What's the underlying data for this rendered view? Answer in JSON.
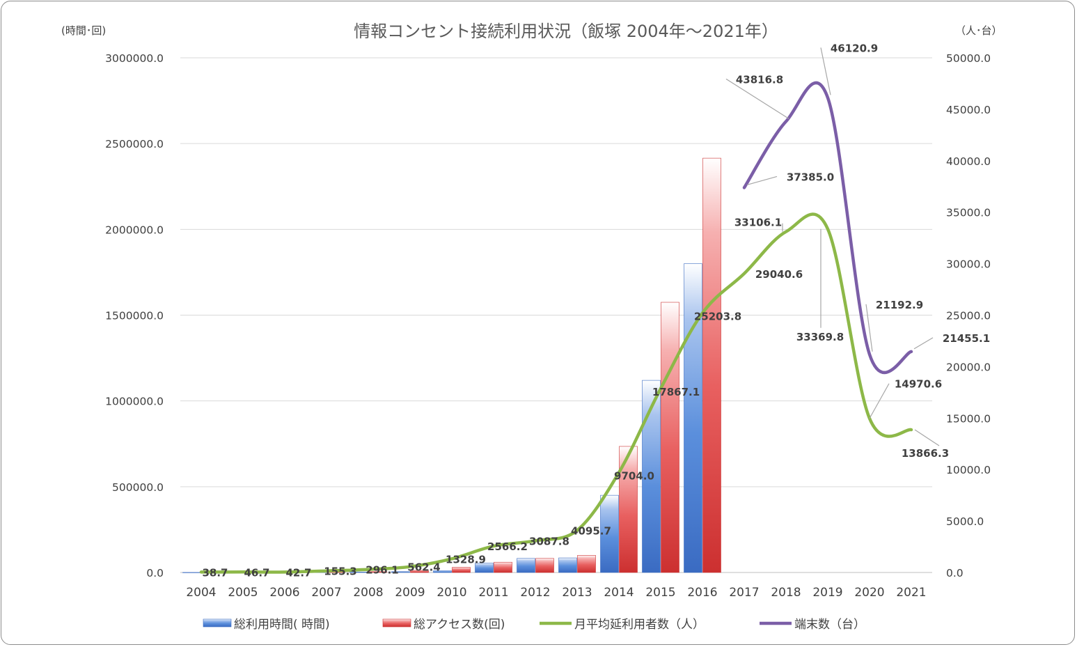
{
  "chart_data": {
    "type": "bar",
    "title": "情報コンセント接続利用状況（飯塚 2004年～2021年）",
    "left_axis_unit": "(時間･回)",
    "right_axis_unit": "（人･台）",
    "categories": [
      "2004",
      "2005",
      "2006",
      "2007",
      "2008",
      "2009",
      "2010",
      "2011",
      "2012",
      "2013",
      "2014",
      "2015",
      "2016",
      "2017",
      "2018",
      "2019",
      "2020",
      "2021"
    ],
    "left_ylim": [
      0,
      3000000
    ],
    "right_ylim": [
      0,
      50000
    ],
    "left_ticks": [
      "0.0",
      "500000.0",
      "1000000.0",
      "1500000.0",
      "2000000.0",
      "2500000.0",
      "3000000.0"
    ],
    "right_ticks": [
      "0.0",
      "5000.0",
      "10000.0",
      "15000.0",
      "20000.0",
      "25000.0",
      "30000.0",
      "35000.0",
      "40000.0",
      "45000.0",
      "50000.0"
    ],
    "grid": true,
    "legend_position": "bottom",
    "series": [
      {
        "name": "総利用時間( 時間)",
        "type": "bar",
        "axis": "left",
        "color": "#4a7fd4",
        "values": [
          500,
          600,
          700,
          1500,
          2500,
          5000,
          10000,
          55000,
          82000,
          85000,
          450000,
          1120000,
          1800000,
          null,
          null,
          null,
          null,
          null
        ]
      },
      {
        "name": "総アクセス数(回)",
        "type": "bar",
        "axis": "left",
        "color": "#e04a4a",
        "values": [
          600,
          800,
          1000,
          2500,
          5000,
          12000,
          30000,
          60000,
          82000,
          100000,
          735000,
          1575000,
          2415000,
          null,
          null,
          null,
          null,
          null
        ]
      },
      {
        "name": "月平均延利用者数（人）",
        "type": "line",
        "axis": "right",
        "color": "#8db848",
        "values": [
          38.7,
          46.7,
          42.7,
          155.3,
          296.1,
          562.4,
          1328.9,
          2566.2,
          3087.8,
          4095.7,
          9704.0,
          17867.1,
          25203.8,
          29040.6,
          33106.1,
          33369.8,
          14970.6,
          13866.3
        ]
      },
      {
        "name": "端末数（台）",
        "type": "line",
        "axis": "right",
        "color": "#7b5ea7",
        "values": [
          null,
          null,
          null,
          null,
          null,
          null,
          null,
          null,
          null,
          null,
          null,
          null,
          null,
          37385.0,
          43816.8,
          46120.9,
          21192.9,
          21455.1
        ]
      }
    ],
    "data_labels": {
      "users": [
        "38.7",
        "46.7",
        "42.7",
        "155.3",
        "296.1",
        "562.4",
        "1328.9",
        "2566.2",
        "3087.8",
        "4095.7",
        "9704.0",
        "17867.1",
        "25203.8",
        "29040.6",
        "33106.1",
        "33369.8",
        "14970.6",
        "13866.3"
      ],
      "terminals": [
        "37385.0",
        "43816.8",
        "46120.9",
        "21192.9",
        "21455.1"
      ]
    }
  }
}
